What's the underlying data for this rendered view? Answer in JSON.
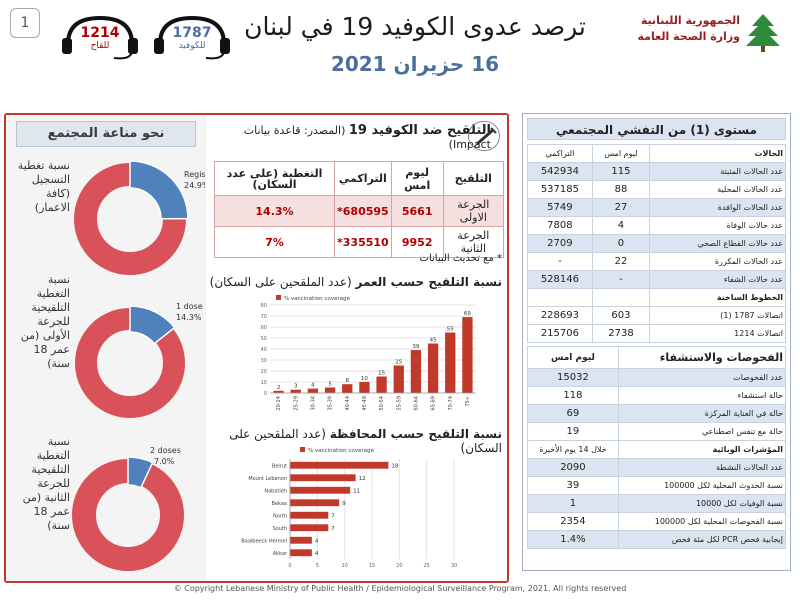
{
  "page_number": "1",
  "hotlines": [
    {
      "number": "1214",
      "label": "للقاح"
    },
    {
      "number": "1787",
      "label": "للكوفيد"
    }
  ],
  "title": "ترصد عدوى الكوفيد 19 في لبنان",
  "date": "16 حزيران 2021",
  "logo": {
    "line1": "الجمهورية اللبنانية",
    "line2": "وزارة الصحة العامة"
  },
  "community": {
    "header": "نحو مناعة المجتمع",
    "items": [
      {
        "label": "نسبة تغطية التسجيل (كافة الاعمار)",
        "segment_label": "Registered",
        "value_label": "24.9%",
        "value": 24.9
      },
      {
        "label": "نسبة التغطية التلقيحية للجرعة الأولى (من عمر 18 سنة)",
        "segment_label": "1 dose",
        "value_label": "14.3%",
        "value": 14.3
      },
      {
        "label": "نسبة التغطية التلقيحية للجرعة الثانية (من عمر 18 سنة)",
        "segment_label": "2 doses",
        "value_label": "7.0%",
        "value": 7.0
      }
    ],
    "colors": {
      "filled": "#4f81bd",
      "remaining": "#d9525a"
    }
  },
  "vaccination": {
    "title_bold": "التلقيح ضد الكوفيد 19",
    "title_source": "(المصدر: قاعدة بيانات Impact)",
    "headers": {
      "vaccination": "التلقيح",
      "yesterday": "ليوم امس",
      "cumulative": "التراكمي",
      "coverage": "التغطية (على عدد السكان)"
    },
    "rows": [
      {
        "dose": "الجرعة الاولى",
        "yesterday": "5661",
        "cumulative": "680595*",
        "coverage": "14.3%"
      },
      {
        "dose": "الجرعة الثانية",
        "yesterday": "9952",
        "cumulative": "335510*",
        "coverage": "7%"
      }
    ],
    "note": "* مع تحديث البيانات"
  },
  "age_chart_title": "نسبة التلقيح حسب العمر",
  "age_chart_subtitle": "(عدد الملقحين على السكان)",
  "gov_chart_title": "نسبة التلقيح حسب المحافظة",
  "gov_chart_subtitle": "(عدد الملقحين على السكان)",
  "chart_data": [
    {
      "type": "bar",
      "title": "نسبة التلقيح حسب العمر",
      "legend": "% vaccination coverage",
      "categories": [
        "20-24",
        "25-29",
        "30-34",
        "35-39",
        "40-44",
        "45-49",
        "50-54",
        "55-59",
        "60-64",
        "65-69",
        "70-74",
        "75+"
      ],
      "values": [
        2,
        3,
        4,
        5,
        8,
        10,
        15,
        25,
        39,
        45,
        55,
        69
      ],
      "ylim": [
        0,
        80
      ],
      "yticks": [
        0,
        10,
        20,
        30,
        40,
        50,
        60,
        70,
        80
      ],
      "color": "#c0392b"
    },
    {
      "type": "bar",
      "orientation": "horizontal",
      "title": "نسبة التلقيح حسب المحافظة",
      "legend": "% vaccination coverage",
      "categories": [
        "Beirut",
        "Mount Lebanon",
        "Nabatieh",
        "Bekaa",
        "North",
        "South",
        "Baalbeeck Hermel",
        "Akkar"
      ],
      "values": [
        18,
        12,
        11,
        9,
        7,
        7,
        4,
        4
      ],
      "xlim": [
        0,
        30
      ],
      "xticks": [
        0,
        5,
        10,
        15,
        20,
        25,
        30
      ],
      "color": "#c0392b"
    }
  ],
  "right": {
    "level_title": "مستوى (1) من التفشي المجتمعي",
    "cases_header": {
      "label": "الحالات",
      "yesterday": "ليوم امس",
      "cumulative": "التراكمي"
    },
    "cases": [
      {
        "label": "عدد الحالات المثبتة",
        "yesterday": "115",
        "cumulative": "542934"
      },
      {
        "label": "عدد الحالات المحلية",
        "yesterday": "88",
        "cumulative": "537185"
      },
      {
        "label": "عدد الحالات الوافدة",
        "yesterday": "27",
        "cumulative": "5749"
      },
      {
        "label": "عدد حالات الوفاة",
        "yesterday": "4",
        "cumulative": "7808"
      },
      {
        "label": "عدد حالات القطاع الصحي",
        "yesterday": "0",
        "cumulative": "2709"
      },
      {
        "label": "عدد الحالات المكررة",
        "yesterday": "22",
        "cumulative": "-"
      },
      {
        "label": "عدد حالات الشفاء",
        "yesterday": "-",
        "cumulative": "528146"
      }
    ],
    "hotlines_header": "الخطوط الساخنة",
    "hotlines": [
      {
        "label": "اتصالات 1787 (1)",
        "yesterday": "603",
        "cumulative": "228693"
      },
      {
        "label": "اتصالات 1214",
        "yesterday": "2738",
        "cumulative": "215706"
      }
    ],
    "tests_header": "الفحوصات والاستشفاء",
    "tests_col": "ليوم امس",
    "tests": [
      {
        "label": "عدد الفحوصات",
        "value": "15032"
      },
      {
        "label": "حالة استشفاء",
        "value": "118"
      },
      {
        "label": "حالة في العناية المركزة",
        "value": "69"
      },
      {
        "label": "حالة مع تنفس اصطناعي",
        "value": "19"
      }
    ],
    "indicators_header": "المؤشرات الوبائية",
    "indicators_col": "خلال 14 يوم الأخيرة",
    "indicators": [
      {
        "label": "عدد الحالات النشطة",
        "value": "2090"
      },
      {
        "label": "نسبة الحدوث المحلية لكل 100000",
        "value": "39"
      },
      {
        "label": "نسبة الوفيات لكل 10000",
        "value": "1"
      },
      {
        "label": "نسبة الفحوصات المحلية لكل 100000",
        "value": "2354"
      },
      {
        "label": "إيجابية فحص PCR لكل مئة فحص",
        "value": "1.4%"
      }
    ]
  },
  "footer": "© Copyright Lebanese Ministry of Public Health / Epidemiological Surveillance Program, 2021. All rights reserved"
}
